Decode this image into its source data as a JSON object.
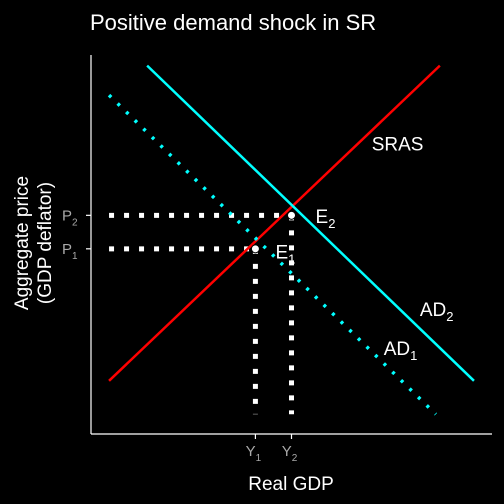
{
  "chart_data": {
    "type": "line",
    "title": "Positive demand shock in SR",
    "xlabel": "Real GDP",
    "ylabel_line1": "Aggregate price",
    "ylabel_line2": "(GDP deflator)",
    "xlim": [
      0,
      10
    ],
    "ylim": [
      0,
      10
    ],
    "grid": false,
    "colors": {
      "background": "#000000",
      "axis": "#ffffff",
      "tick_text": "#a9a9a9",
      "sras": "#ff0000",
      "ad": "#00ffff",
      "guides": "#ffffff"
    },
    "series": [
      {
        "name": "SRAS",
        "color": "#ff0000",
        "style": "solid",
        "x": [
          0.45,
          8.7
        ],
        "y": [
          1.35,
          9.35
        ]
      },
      {
        "name": "AD2",
        "color": "#00ffff",
        "style": "solid",
        "x": [
          1.4,
          9.55
        ],
        "y": [
          9.35,
          1.35
        ]
      },
      {
        "name": "AD1",
        "color": "#00ffff",
        "style": "dotted",
        "x": [
          0.45,
          8.6
        ],
        "y": [
          8.6,
          0.5
        ]
      }
    ],
    "curve_labels": [
      {
        "main": "SRAS",
        "sub": "",
        "x": 7.0,
        "y": 7.2
      },
      {
        "main": "AD",
        "sub": "2",
        "x": 8.2,
        "y": 3.0
      },
      {
        "main": "AD",
        "sub": "1",
        "x": 7.3,
        "y": 2.0
      }
    ],
    "points": [
      {
        "main": "E",
        "sub": "1",
        "x": 4.1,
        "y": 4.7,
        "label_x": 4.6,
        "label_y": 4.45
      },
      {
        "main": "E",
        "sub": "2",
        "x": 5.0,
        "y": 5.55,
        "label_x": 5.6,
        "label_y": 5.35
      }
    ],
    "x_ticks": [
      {
        "main": "Y",
        "sub": "1",
        "value": 4.1
      },
      {
        "main": "Y",
        "sub": "2",
        "value": 5.0
      }
    ],
    "y_ticks": [
      {
        "main": "P",
        "sub": "1",
        "value": 4.7
      },
      {
        "main": "P",
        "sub": "2",
        "value": 5.55
      }
    ]
  }
}
